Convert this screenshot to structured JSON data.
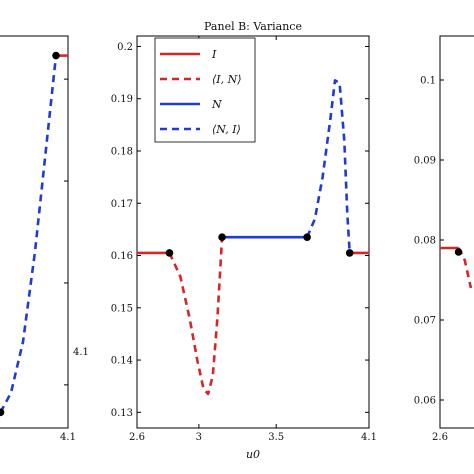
{
  "chart_data": [
    {
      "type": "line",
      "panel": "left",
      "title": "",
      "xlabel": "",
      "ylabel": "",
      "x_tick_labels": [
        "4.1"
      ],
      "y_tick_labels": [
        "4.1"
      ],
      "series": [
        {
          "style": "solid",
          "color": "#d62728",
          "x": [
            4.02,
            4.1
          ],
          "y": [
            0.95,
            0.95
          ]
        },
        {
          "style": "dashed",
          "color": "#1f3bd1",
          "x": [
            3.65,
            3.72,
            3.8,
            3.88,
            3.95,
            4.02
          ],
          "y": [
            0.04,
            0.09,
            0.22,
            0.45,
            0.7,
            0.95
          ]
        },
        {
          "style": "solid",
          "color": "#1f3bd1",
          "x": [
            3.4,
            3.65
          ],
          "y": [
            0.04,
            0.04
          ]
        }
      ],
      "points": [
        {
          "x": 3.65,
          "y": 0.04
        },
        {
          "x": 4.02,
          "y": 0.95
        }
      ]
    },
    {
      "type": "line",
      "panel": "middle",
      "title": "Panel B: Variance",
      "xlabel": "u0",
      "ylabel": "",
      "xlim": [
        2.6,
        4.1
      ],
      "ylim": [
        0.127,
        0.202
      ],
      "x_ticks": [
        2.6,
        3,
        3.5,
        4.1
      ],
      "x_tick_labels": [
        "2.6",
        "3",
        "3.5",
        "4.1"
      ],
      "y_ticks": [
        0.13,
        0.14,
        0.15,
        0.16,
        0.17,
        0.18,
        0.19,
        0.2
      ],
      "y_tick_labels": [
        "0.13",
        "0.14",
        "0.15",
        "0.16",
        "0.17",
        "0.18",
        "0.19",
        "0.2"
      ],
      "legend": {
        "placement": "top-left",
        "entries": [
          {
            "label": "I",
            "style": "solid",
            "color": "#d62728"
          },
          {
            "label": "⟨I, N⟩",
            "style": "dashed",
            "color": "#d62728"
          },
          {
            "label": "N",
            "style": "solid",
            "color": "#1f3bd1"
          },
          {
            "label": "⟨N, I⟩",
            "style": "dashed",
            "color": "#1f3bd1"
          }
        ]
      },
      "series": [
        {
          "name": "I",
          "style": "solid",
          "color": "#d62728",
          "x": [
            2.6,
            2.81
          ],
          "y": [
            0.1605,
            0.1605
          ]
        },
        {
          "name": "⟨I, N⟩",
          "style": "dashed",
          "color": "#d62728",
          "x": [
            2.81,
            2.88,
            2.94,
            2.99,
            3.03,
            3.06,
            3.09,
            3.12,
            3.15
          ],
          "y": [
            0.1605,
            0.156,
            0.148,
            0.14,
            0.1345,
            0.1335,
            0.137,
            0.148,
            0.1635
          ]
        },
        {
          "name": "I",
          "style": "solid",
          "color": "#d62728",
          "x": [
            3.15,
            3.15
          ],
          "y": [
            0.1635,
            0.1635
          ]
        },
        {
          "name": "N",
          "style": "solid",
          "color": "#1f3bd1",
          "x": [
            3.15,
            3.7
          ],
          "y": [
            0.1635,
            0.1635
          ]
        },
        {
          "name": "⟨N, I⟩",
          "style": "dashed",
          "color": "#1f3bd1",
          "x": [
            3.7,
            3.75,
            3.8,
            3.85,
            3.88,
            3.91,
            3.94,
            3.96,
            3.975
          ],
          "y": [
            0.1635,
            0.167,
            0.175,
            0.186,
            0.1935,
            0.193,
            0.182,
            0.168,
            0.1605
          ]
        },
        {
          "name": "I",
          "style": "solid",
          "color": "#d62728",
          "x": [
            3.975,
            4.1
          ],
          "y": [
            0.1605,
            0.1605
          ]
        }
      ],
      "points": [
        {
          "x": 2.81,
          "y": 0.1605
        },
        {
          "x": 3.15,
          "y": 0.1635
        },
        {
          "x": 3.7,
          "y": 0.1635
        },
        {
          "x": 3.975,
          "y": 0.1605
        }
      ]
    },
    {
      "type": "line",
      "panel": "right",
      "title": "",
      "xlabel": "",
      "ylabel": "",
      "x_tick_labels": [
        "2.6"
      ],
      "y_ticks": [
        0.06,
        0.07,
        0.08,
        0.09,
        0.1
      ],
      "y_tick_labels": [
        "0.06",
        "0.07",
        "0.08",
        "0.09",
        "0.1"
      ],
      "series": [
        {
          "style": "solid",
          "color": "#d62728",
          "x": [
            2.6,
            2.72
          ],
          "y": [
            0.079,
            0.079
          ]
        },
        {
          "style": "dashed",
          "color": "#d62728",
          "x": [
            2.72,
            2.76,
            2.8
          ],
          "y": [
            0.079,
            0.0775,
            0.074
          ]
        }
      ],
      "points": [
        {
          "x": 2.72,
          "y": 0.0785
        }
      ]
    }
  ]
}
